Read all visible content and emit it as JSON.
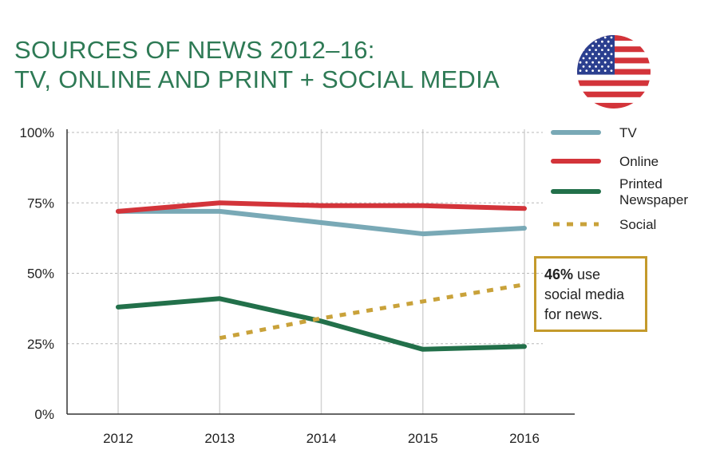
{
  "title": {
    "line1": "SOURCES OF NEWS 2012–16:",
    "line2": "TV, ONLINE AND PRINT + SOCIAL MEDIA"
  },
  "flag_icon": "us-flag-icon",
  "colors": {
    "title": "#2e7a55",
    "tv": "#79a9b6",
    "online": "#d3343a",
    "print": "#22704a",
    "social": "#c9a23a",
    "callout_border": "#c49a2c"
  },
  "callout": {
    "bold": "46%",
    "rest1": " use",
    "line2": "social media",
    "line3": "for news."
  },
  "chart_data": {
    "type": "line",
    "title": "SOURCES OF NEWS 2012–16: TV, ONLINE AND PRINT + SOCIAL MEDIA",
    "xlabel": "",
    "ylabel": "",
    "categories": [
      "2012",
      "2013",
      "2014",
      "2015",
      "2016"
    ],
    "ylim": [
      0,
      100
    ],
    "yticks": [
      0,
      25,
      50,
      75,
      100
    ],
    "ytick_labels": [
      "0%",
      "25%",
      "50%",
      "75%",
      "100%"
    ],
    "grid": true,
    "legend_position": "right",
    "series": [
      {
        "name": "TV",
        "key": "tv",
        "style": "solid",
        "values": [
          72,
          72,
          68,
          64,
          66
        ]
      },
      {
        "name": "Online",
        "key": "online",
        "style": "solid",
        "values": [
          72,
          75,
          74,
          74,
          73
        ]
      },
      {
        "name": "Printed Newspaper",
        "legend_lines": [
          "Printed",
          "Newspaper"
        ],
        "key": "print",
        "style": "solid",
        "values": [
          38,
          41,
          33,
          23,
          24
        ]
      },
      {
        "name": "Social",
        "key": "social",
        "style": "dashed",
        "values": [
          null,
          27,
          34,
          40,
          46
        ]
      }
    ]
  }
}
